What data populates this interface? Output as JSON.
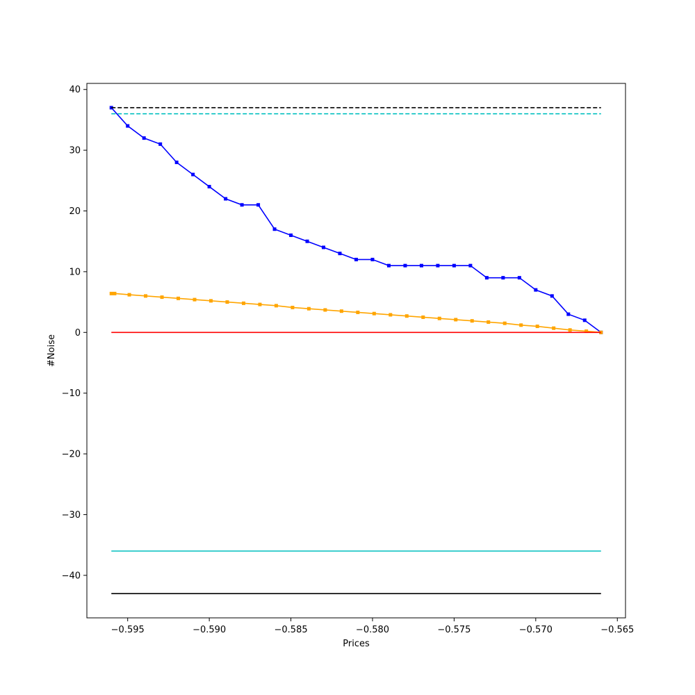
{
  "chart_data": {
    "type": "line",
    "title": "",
    "xlabel": "Prices",
    "ylabel": "#Noise",
    "xlim": [
      -0.5975,
      -0.5645
    ],
    "ylim": [
      -47,
      41
    ],
    "grid": false,
    "x_ticks": [
      -0.595,
      -0.59,
      -0.585,
      -0.58,
      -0.575,
      -0.57,
      -0.565
    ],
    "x_tick_labels": [
      "−0.595",
      "−0.590",
      "−0.585",
      "−0.580",
      "−0.575",
      "−0.570",
      "−0.565"
    ],
    "y_ticks": [
      40,
      30,
      20,
      10,
      0,
      -10,
      -20,
      -30,
      -40
    ],
    "y_tick_labels": [
      "40",
      "30",
      "20",
      "10",
      "0",
      "−10",
      "−20",
      "−30",
      "−40"
    ],
    "series": [
      {
        "style": "solid",
        "marker": "square",
        "color": "#0000ff",
        "x": [
          -0.596,
          -0.595,
          -0.594,
          -0.593,
          -0.592,
          -0.591,
          -0.59,
          -0.589,
          -0.588,
          -0.587,
          -0.586,
          -0.585,
          -0.584,
          -0.583,
          -0.582,
          -0.581,
          -0.58,
          -0.579,
          -0.578,
          -0.577,
          -0.576,
          -0.575,
          -0.574,
          -0.573,
          -0.572,
          -0.571,
          -0.57,
          -0.569,
          -0.568,
          -0.567,
          -0.566
        ],
        "values": [
          37,
          34,
          32,
          31,
          28,
          26,
          24,
          22,
          21,
          21,
          17,
          16,
          15,
          14,
          13,
          12,
          12,
          11,
          11,
          11,
          11,
          11,
          11,
          9,
          9,
          9,
          7,
          6,
          3,
          2,
          0
        ]
      },
      {
        "style": "solid",
        "marker": "square",
        "color": "#ffa500",
        "x": [
          -0.596,
          -0.5958,
          -0.5949,
          -0.5939,
          -0.5929,
          -0.5919,
          -0.5909,
          -0.5899,
          -0.5889,
          -0.5879,
          -0.5869,
          -0.5859,
          -0.5849,
          -0.5839,
          -0.5829,
          -0.5819,
          -0.5809,
          -0.5799,
          -0.5789,
          -0.5779,
          -0.5769,
          -0.5759,
          -0.5749,
          -0.5739,
          -0.5729,
          -0.5719,
          -0.5709,
          -0.5699,
          -0.5689,
          -0.5679,
          -0.5669,
          -0.566
        ],
        "values": [
          6.4,
          6.4,
          6.2,
          6.0,
          5.8,
          5.6,
          5.4,
          5.2,
          5.0,
          4.8,
          4.6,
          4.4,
          4.1,
          3.9,
          3.7,
          3.5,
          3.3,
          3.1,
          2.9,
          2.7,
          2.5,
          2.3,
          2.1,
          1.9,
          1.7,
          1.5,
          1.2,
          1.0,
          0.7,
          0.4,
          0.2,
          0
        ]
      },
      {
        "style": "dashed",
        "color": "#000000",
        "x": [
          -0.596,
          -0.566
        ],
        "values": [
          37,
          37
        ]
      },
      {
        "style": "dashed",
        "color": "#00bfbf",
        "x": [
          -0.596,
          -0.566
        ],
        "values": [
          36,
          36
        ]
      },
      {
        "style": "solid",
        "color": "#ff0000",
        "x": [
          -0.596,
          -0.566
        ],
        "values": [
          0,
          0
        ]
      },
      {
        "style": "solid",
        "color": "#00bfbf",
        "x": [
          -0.596,
          -0.566
        ],
        "values": [
          -36,
          -36
        ]
      },
      {
        "style": "solid",
        "color": "#000000",
        "x": [
          -0.596,
          -0.566
        ],
        "values": [
          -43,
          -43
        ]
      }
    ]
  }
}
